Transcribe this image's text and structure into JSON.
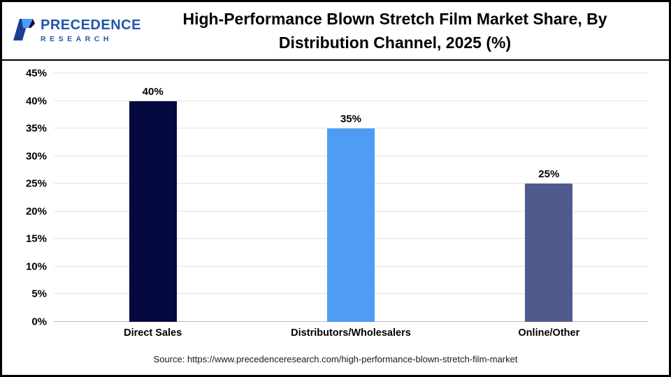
{
  "header": {
    "title": "High-Performance Blown Stretch Film Market Share, By Distribution Channel, 2025 (%)",
    "logo": {
      "line1": "PRECEDENCE",
      "line2": "RESEARCH",
      "brand_color": "#2157a8"
    }
  },
  "chart_data": {
    "type": "bar",
    "title": "High-Performance Blown Stretch Film Market Share, By Distribution Channel, 2025 (%)",
    "categories": [
      "Direct Sales",
      "Distributors/Wholesalers",
      "Online/Other"
    ],
    "values": [
      40,
      35,
      25
    ],
    "value_labels": [
      "40%",
      "35%",
      "25%"
    ],
    "bar_colors": [
      "#06093f",
      "#4e9cf4",
      "#4f5a8d"
    ],
    "xlabel": "",
    "ylabel": "",
    "ylim": [
      0,
      45
    ],
    "ytick_step": 5,
    "ytick_suffix": "%",
    "grid": true,
    "legend": false
  },
  "footer": {
    "source": "Source: https://www.precedenceresearch.com/high-performance-blown-stretch-film-market"
  }
}
